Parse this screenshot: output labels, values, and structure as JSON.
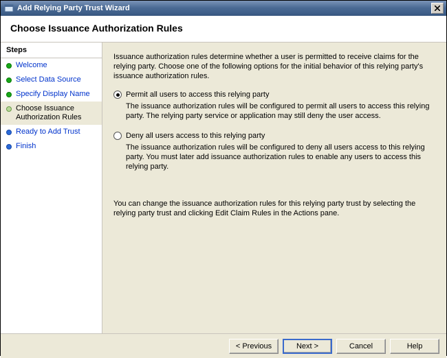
{
  "window": {
    "title": "Add Relying Party Trust Wizard"
  },
  "header": {
    "title": "Choose Issuance Authorization Rules"
  },
  "sidebar": {
    "heading": "Steps",
    "steps": [
      {
        "label": "Welcome",
        "state": "done"
      },
      {
        "label": "Select Data Source",
        "state": "done"
      },
      {
        "label": "Specify Display Name",
        "state": "done"
      },
      {
        "label": "Choose Issuance Authorization Rules",
        "state": "current"
      },
      {
        "label": "Ready to Add Trust",
        "state": "pending"
      },
      {
        "label": "Finish",
        "state": "pending"
      }
    ]
  },
  "content": {
    "intro": "Issuance authorization rules determine whether a user is permitted to receive claims for the relying party. Choose one of the following options for the initial behavior of this relying party's issuance authorization rules.",
    "options": [
      {
        "label": "Permit all users to access this relying party",
        "description": "The issuance authorization rules will be configured to permit all users to access this relying party. The relying party service or application may still deny the user access.",
        "selected": true
      },
      {
        "label": "Deny all users access to this relying party",
        "description": "The issuance authorization rules will be configured to deny all users access to this relying party. You must later add issuance authorization rules to enable any users to access this relying party.",
        "selected": false
      }
    ],
    "footnote": "You can change the issuance authorization rules for this relying party trust by selecting the relying party trust and clicking Edit Claim Rules in the Actions pane."
  },
  "buttons": {
    "previous": "< Previous",
    "next": "Next >",
    "cancel": "Cancel",
    "help": "Help"
  },
  "colors": {
    "titlebar_start": "#7b94b8",
    "titlebar_end": "#3a5a84",
    "panel_bg": "#ece9d8",
    "link_color": "#0033cc",
    "bullet_done": "#18a818",
    "bullet_current": "#b8d898",
    "bullet_pending": "#2a6ad8"
  }
}
